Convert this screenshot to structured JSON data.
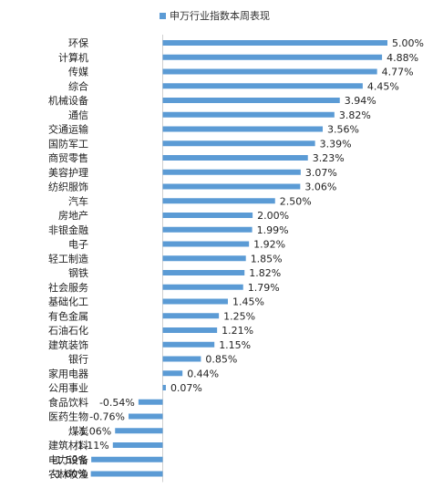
{
  "chart_data": {
    "type": "bar",
    "orientation": "horizontal",
    "title": "",
    "legend": {
      "label": "申万行业指数本周表现",
      "position": "top"
    },
    "series_color": "#5B9BD5",
    "categories": [
      "环保",
      "计算机",
      "传媒",
      "综合",
      "机械设备",
      "通信",
      "交通运输",
      "国防军工",
      "商贸零售",
      "美容护理",
      "纺织服饰",
      "汽车",
      "房地产",
      "非银金融",
      "电子",
      "轻工制造",
      "钢铁",
      "社会服务",
      "基础化工",
      "有色金属",
      "石油石化",
      "建筑装饰",
      "银行",
      "家用电器",
      "公用事业",
      "食品饮料",
      "医药生物",
      "煤炭",
      "建筑材料",
      "电力设备",
      "农林牧渔"
    ],
    "values": [
      5.0,
      4.88,
      4.77,
      4.45,
      3.94,
      3.82,
      3.56,
      3.39,
      3.23,
      3.07,
      3.06,
      2.5,
      2.0,
      1.99,
      1.92,
      1.85,
      1.82,
      1.79,
      1.45,
      1.25,
      1.21,
      1.15,
      0.85,
      0.44,
      0.07,
      -0.54,
      -0.76,
      -1.06,
      -1.11,
      -1.59,
      -1.6
    ],
    "value_labels": [
      "5.00%",
      "4.88%",
      "4.77%",
      "4.45%",
      "3.94%",
      "3.82%",
      "3.56%",
      "3.39%",
      "3.23%",
      "3.07%",
      "3.06%",
      "2.50%",
      "2.00%",
      "1.99%",
      "1.92%",
      "1.85%",
      "1.82%",
      "1.79%",
      "1.45%",
      "1.25%",
      "1.21%",
      "1.15%",
      "0.85%",
      "0.44%",
      "0.07%",
      "-0.54%",
      "-0.76%",
      "-1.06%",
      "-1.11%",
      "-1.59%",
      "-1.60%"
    ],
    "unit": "%",
    "xlim": [
      -1.6,
      5.0
    ],
    "grid": false
  }
}
